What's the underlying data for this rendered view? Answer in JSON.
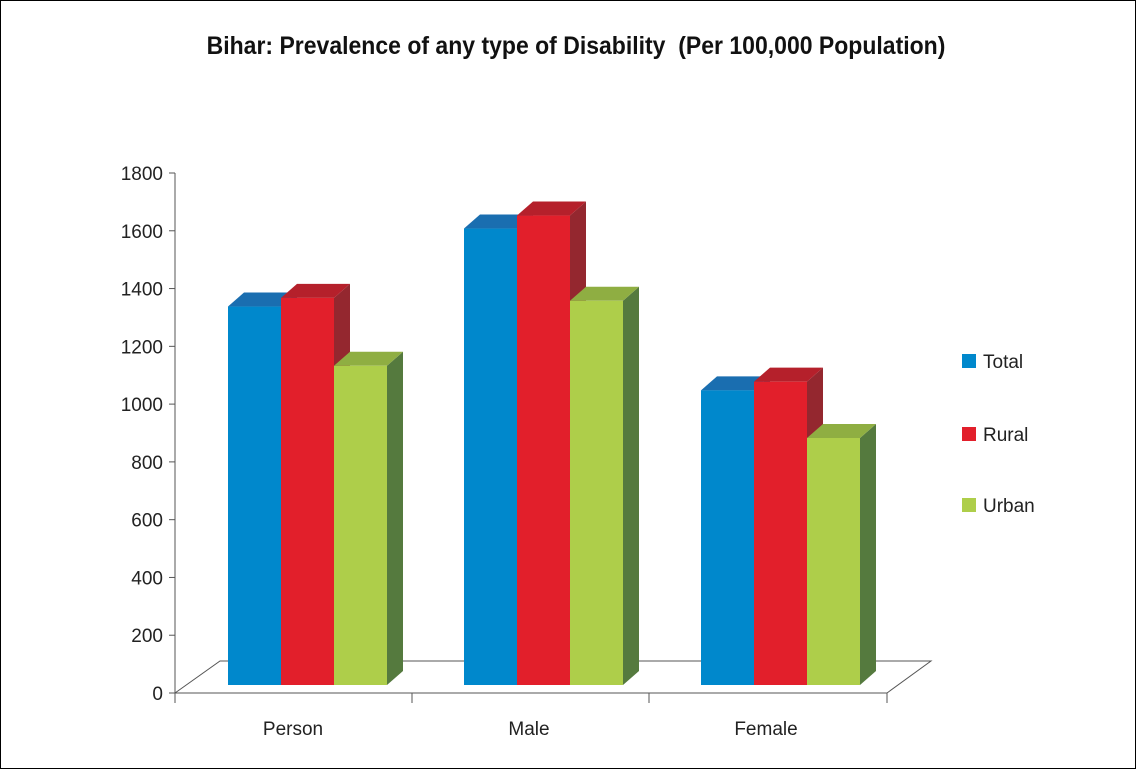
{
  "chart_data": {
    "type": "bar",
    "title": "Bihar: Prevalence of any type of Disability  (Per 100,000 Population)",
    "categories": [
      "Person",
      "Male",
      "Female"
    ],
    "series": [
      {
        "name": "Total",
        "values": [
          1310,
          1580,
          1020
        ]
      },
      {
        "name": "Rural",
        "values": [
          1340,
          1625,
          1050
        ]
      },
      {
        "name": "Urban",
        "values": [
          1105,
          1330,
          855
        ]
      }
    ],
    "yticks": [
      "0",
      "200",
      "400",
      "600",
      "800",
      "1000",
      "1200",
      "1400",
      "1600",
      "1800"
    ],
    "ylim": [
      0,
      1800
    ],
    "grid": false,
    "legend": "right",
    "colors": {
      "Total": {
        "front": "#0088cc",
        "top": "#1a6eb0",
        "side": "#0a5a96"
      },
      "Rural": {
        "front": "#e21f2b",
        "top": "#b5202b",
        "side": "#94272f"
      },
      "Urban": {
        "front": "#aece4a",
        "top": "#8fae42",
        "side": "#557a3e"
      }
    }
  }
}
